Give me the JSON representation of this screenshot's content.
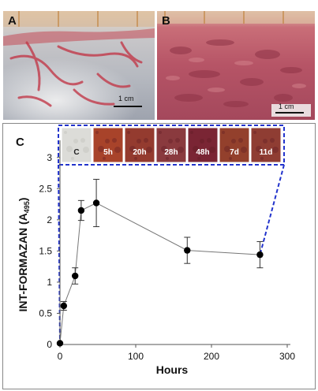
{
  "panel_a": {
    "label": "A",
    "scale_text": "1 cm"
  },
  "panel_b": {
    "label": "B",
    "scale_text": "1 cm"
  },
  "panel_c": {
    "label": "C",
    "insets": [
      "C",
      "5h",
      "20h",
      "28h",
      "48h",
      "7d",
      "11d"
    ],
    "inset_colors": [
      "#dcdcd8",
      "#a8432a",
      "#943b2f",
      "#8a3a3e",
      "#7a2534",
      "#93402c",
      "#8f3d33"
    ]
  },
  "chart_data": {
    "type": "scatter",
    "xlabel": "Hours",
    "ylabel": "INT-FORMAZAN (A",
    "ylabel_sub": "495",
    "ylabel_end": ")",
    "xlim": [
      0,
      300
    ],
    "ylim": [
      0,
      3.25
    ],
    "xticks": [
      0,
      100,
      200,
      300
    ],
    "yticks": [
      0,
      0.5,
      1,
      1.5,
      2,
      2.5,
      3
    ],
    "xtick_labels": [
      "0",
      "100",
      "200",
      "300"
    ],
    "ytick_labels": [
      "0",
      "0.5",
      "1",
      "1.5",
      "2",
      "2.5",
      "3"
    ],
    "series": [
      {
        "x": [
          0,
          5,
          20,
          28,
          48,
          168,
          264
        ],
        "y": [
          0.02,
          0.62,
          1.1,
          2.15,
          2.27,
          1.51,
          1.44
        ],
        "err": [
          0.0,
          0.07,
          0.13,
          0.16,
          0.38,
          0.21,
          0.21
        ]
      }
    ],
    "grid": false
  }
}
